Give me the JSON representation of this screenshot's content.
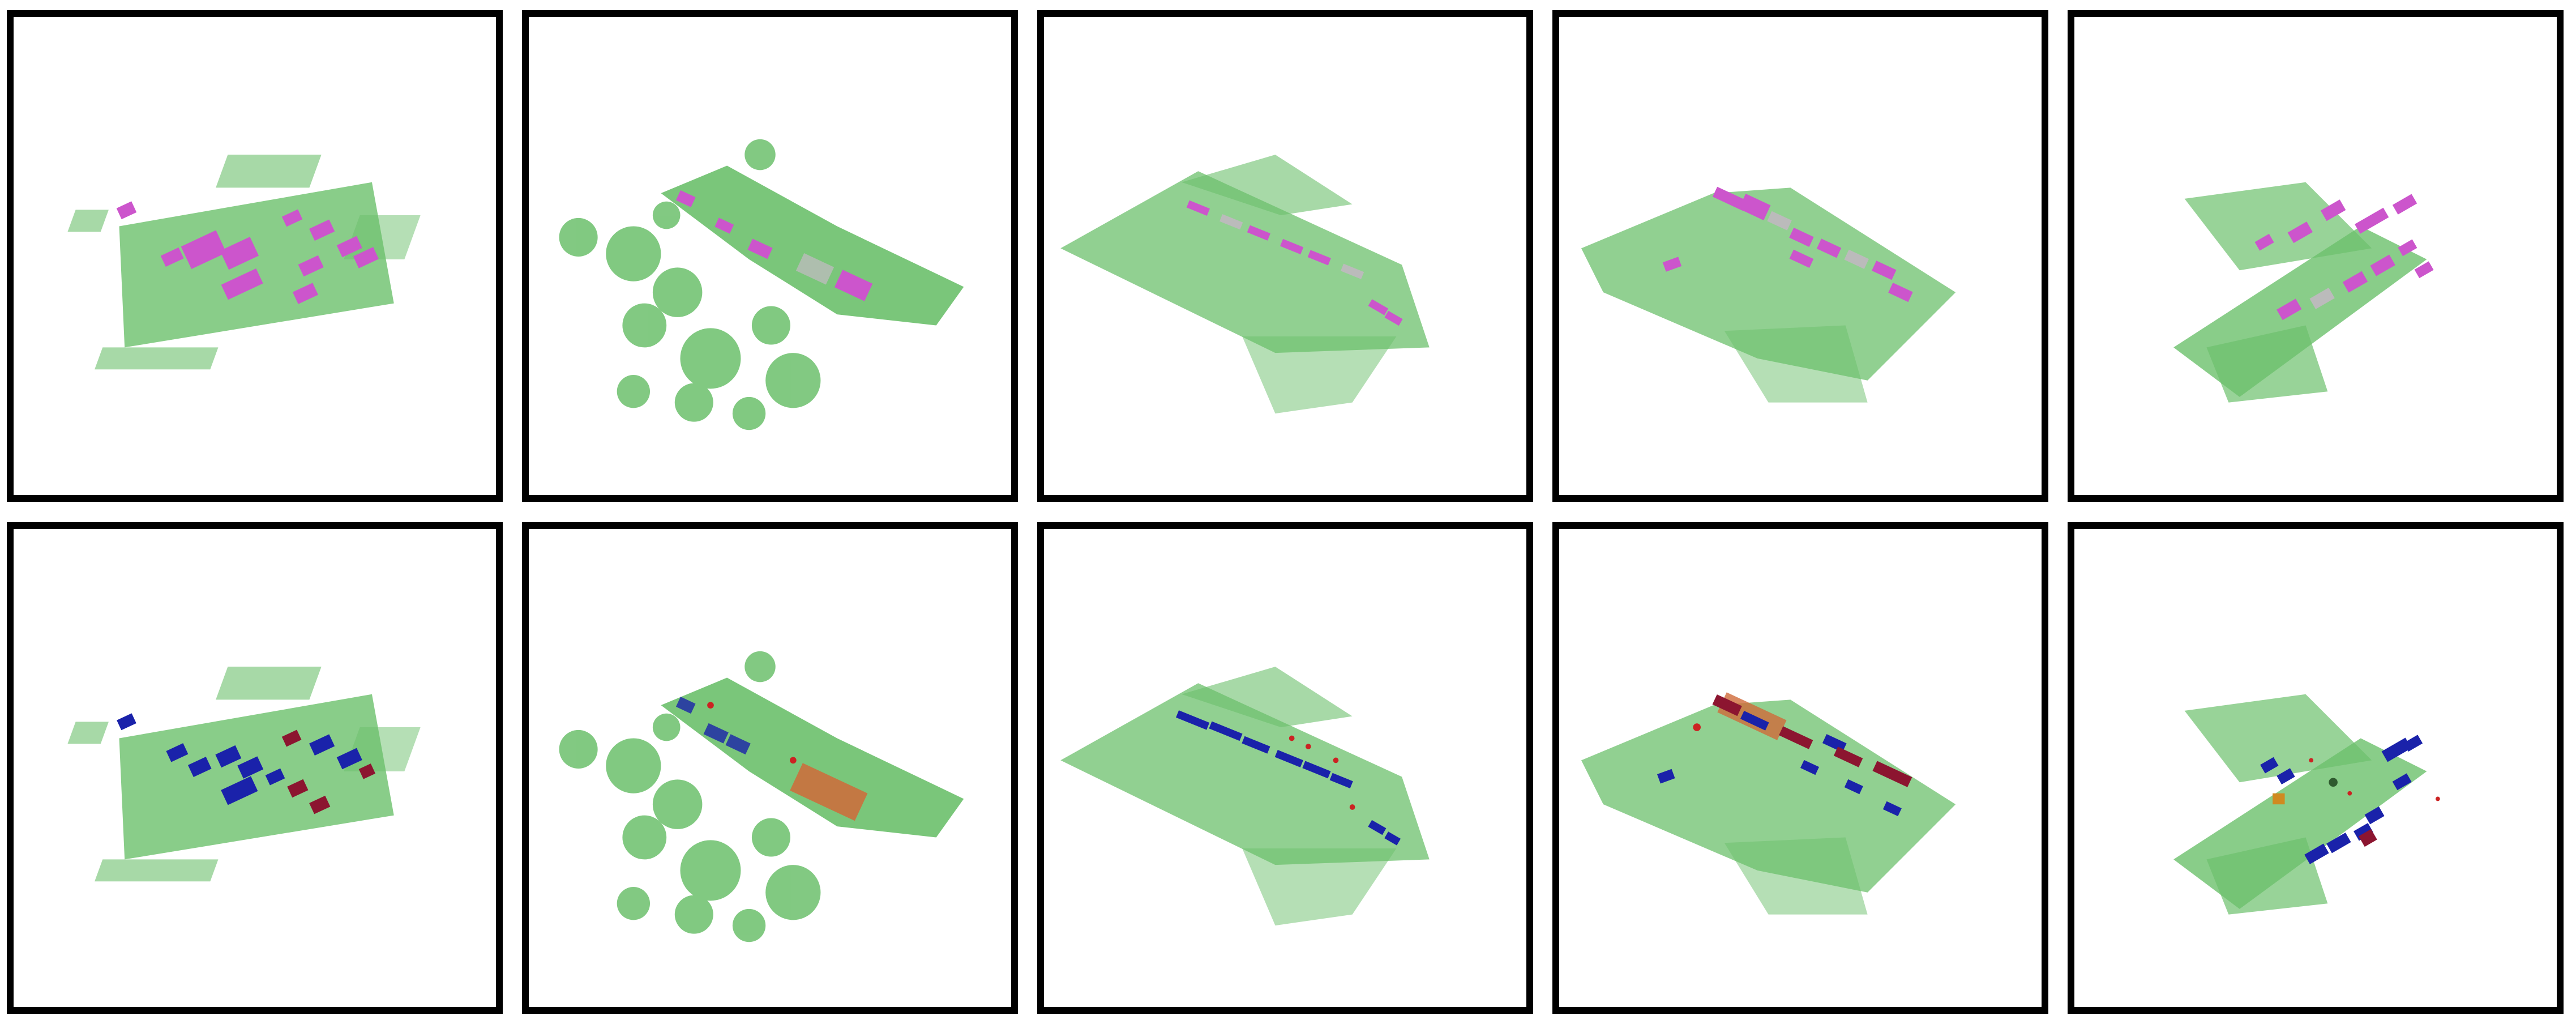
{
  "figure": {
    "rows": 2,
    "cols": 5,
    "colors": {
      "point_cloud": "#6cc06c",
      "box_magenta": "#cc55cc",
      "box_blue": "#1a22aa",
      "box_darkred": "#8c1530",
      "box_red": "#cc2222",
      "box_orange": "#d06a3a",
      "box_gray": "#bbbbbb",
      "panel_border": "#000000"
    },
    "panels": [
      {
        "row": 1,
        "col": 1,
        "scene": "cluttered-lot",
        "box_colors": [
          "magenta"
        ]
      },
      {
        "row": 1,
        "col": 2,
        "scene": "curved-road-with-trees",
        "box_colors": [
          "magenta",
          "gray"
        ]
      },
      {
        "row": 1,
        "col": 3,
        "scene": "diagonal-road",
        "box_colors": [
          "magenta",
          "gray"
        ]
      },
      {
        "row": 1,
        "col": 4,
        "scene": "wide-intersection",
        "box_colors": [
          "magenta",
          "gray"
        ]
      },
      {
        "row": 1,
        "col": 5,
        "scene": "crossroad",
        "box_colors": [
          "magenta",
          "gray"
        ]
      },
      {
        "row": 2,
        "col": 1,
        "scene": "cluttered-lot",
        "box_colors": [
          "blue",
          "darkred"
        ]
      },
      {
        "row": 2,
        "col": 2,
        "scene": "curved-road-with-trees",
        "box_colors": [
          "blue",
          "orange",
          "red"
        ]
      },
      {
        "row": 2,
        "col": 3,
        "scene": "diagonal-road",
        "box_colors": [
          "blue",
          "red"
        ]
      },
      {
        "row": 2,
        "col": 4,
        "scene": "wide-intersection",
        "box_colors": [
          "blue",
          "darkred",
          "orange"
        ]
      },
      {
        "row": 2,
        "col": 5,
        "scene": "crossroad",
        "box_colors": [
          "blue",
          "darkred",
          "orange"
        ]
      }
    ]
  }
}
